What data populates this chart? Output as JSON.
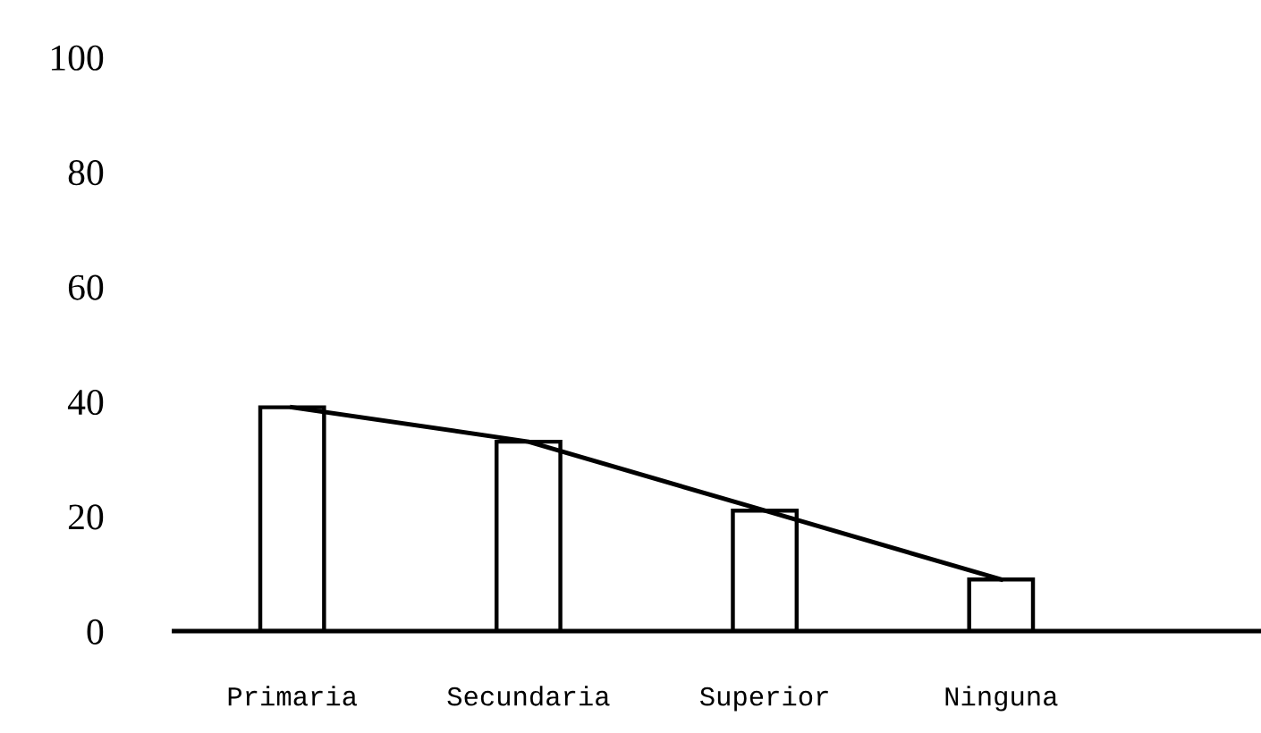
{
  "chart_data": {
    "type": "bar",
    "categories": [
      "Primaria",
      "Secundaria",
      "Superior",
      "Ninguna"
    ],
    "series": [
      {
        "color": "#ffffff",
        "values": [
          39,
          33,
          21,
          9
        ]
      },
      {
        "type": "line",
        "color": "#000000",
        "values": [
          39,
          33,
          21,
          9
        ]
      }
    ],
    "ylim": [
      0,
      100
    ],
    "yticks": [
      0,
      20,
      40,
      60,
      80,
      100
    ],
    "grid": false,
    "legend": false,
    "marker": "none",
    "line_style": "solid"
  }
}
